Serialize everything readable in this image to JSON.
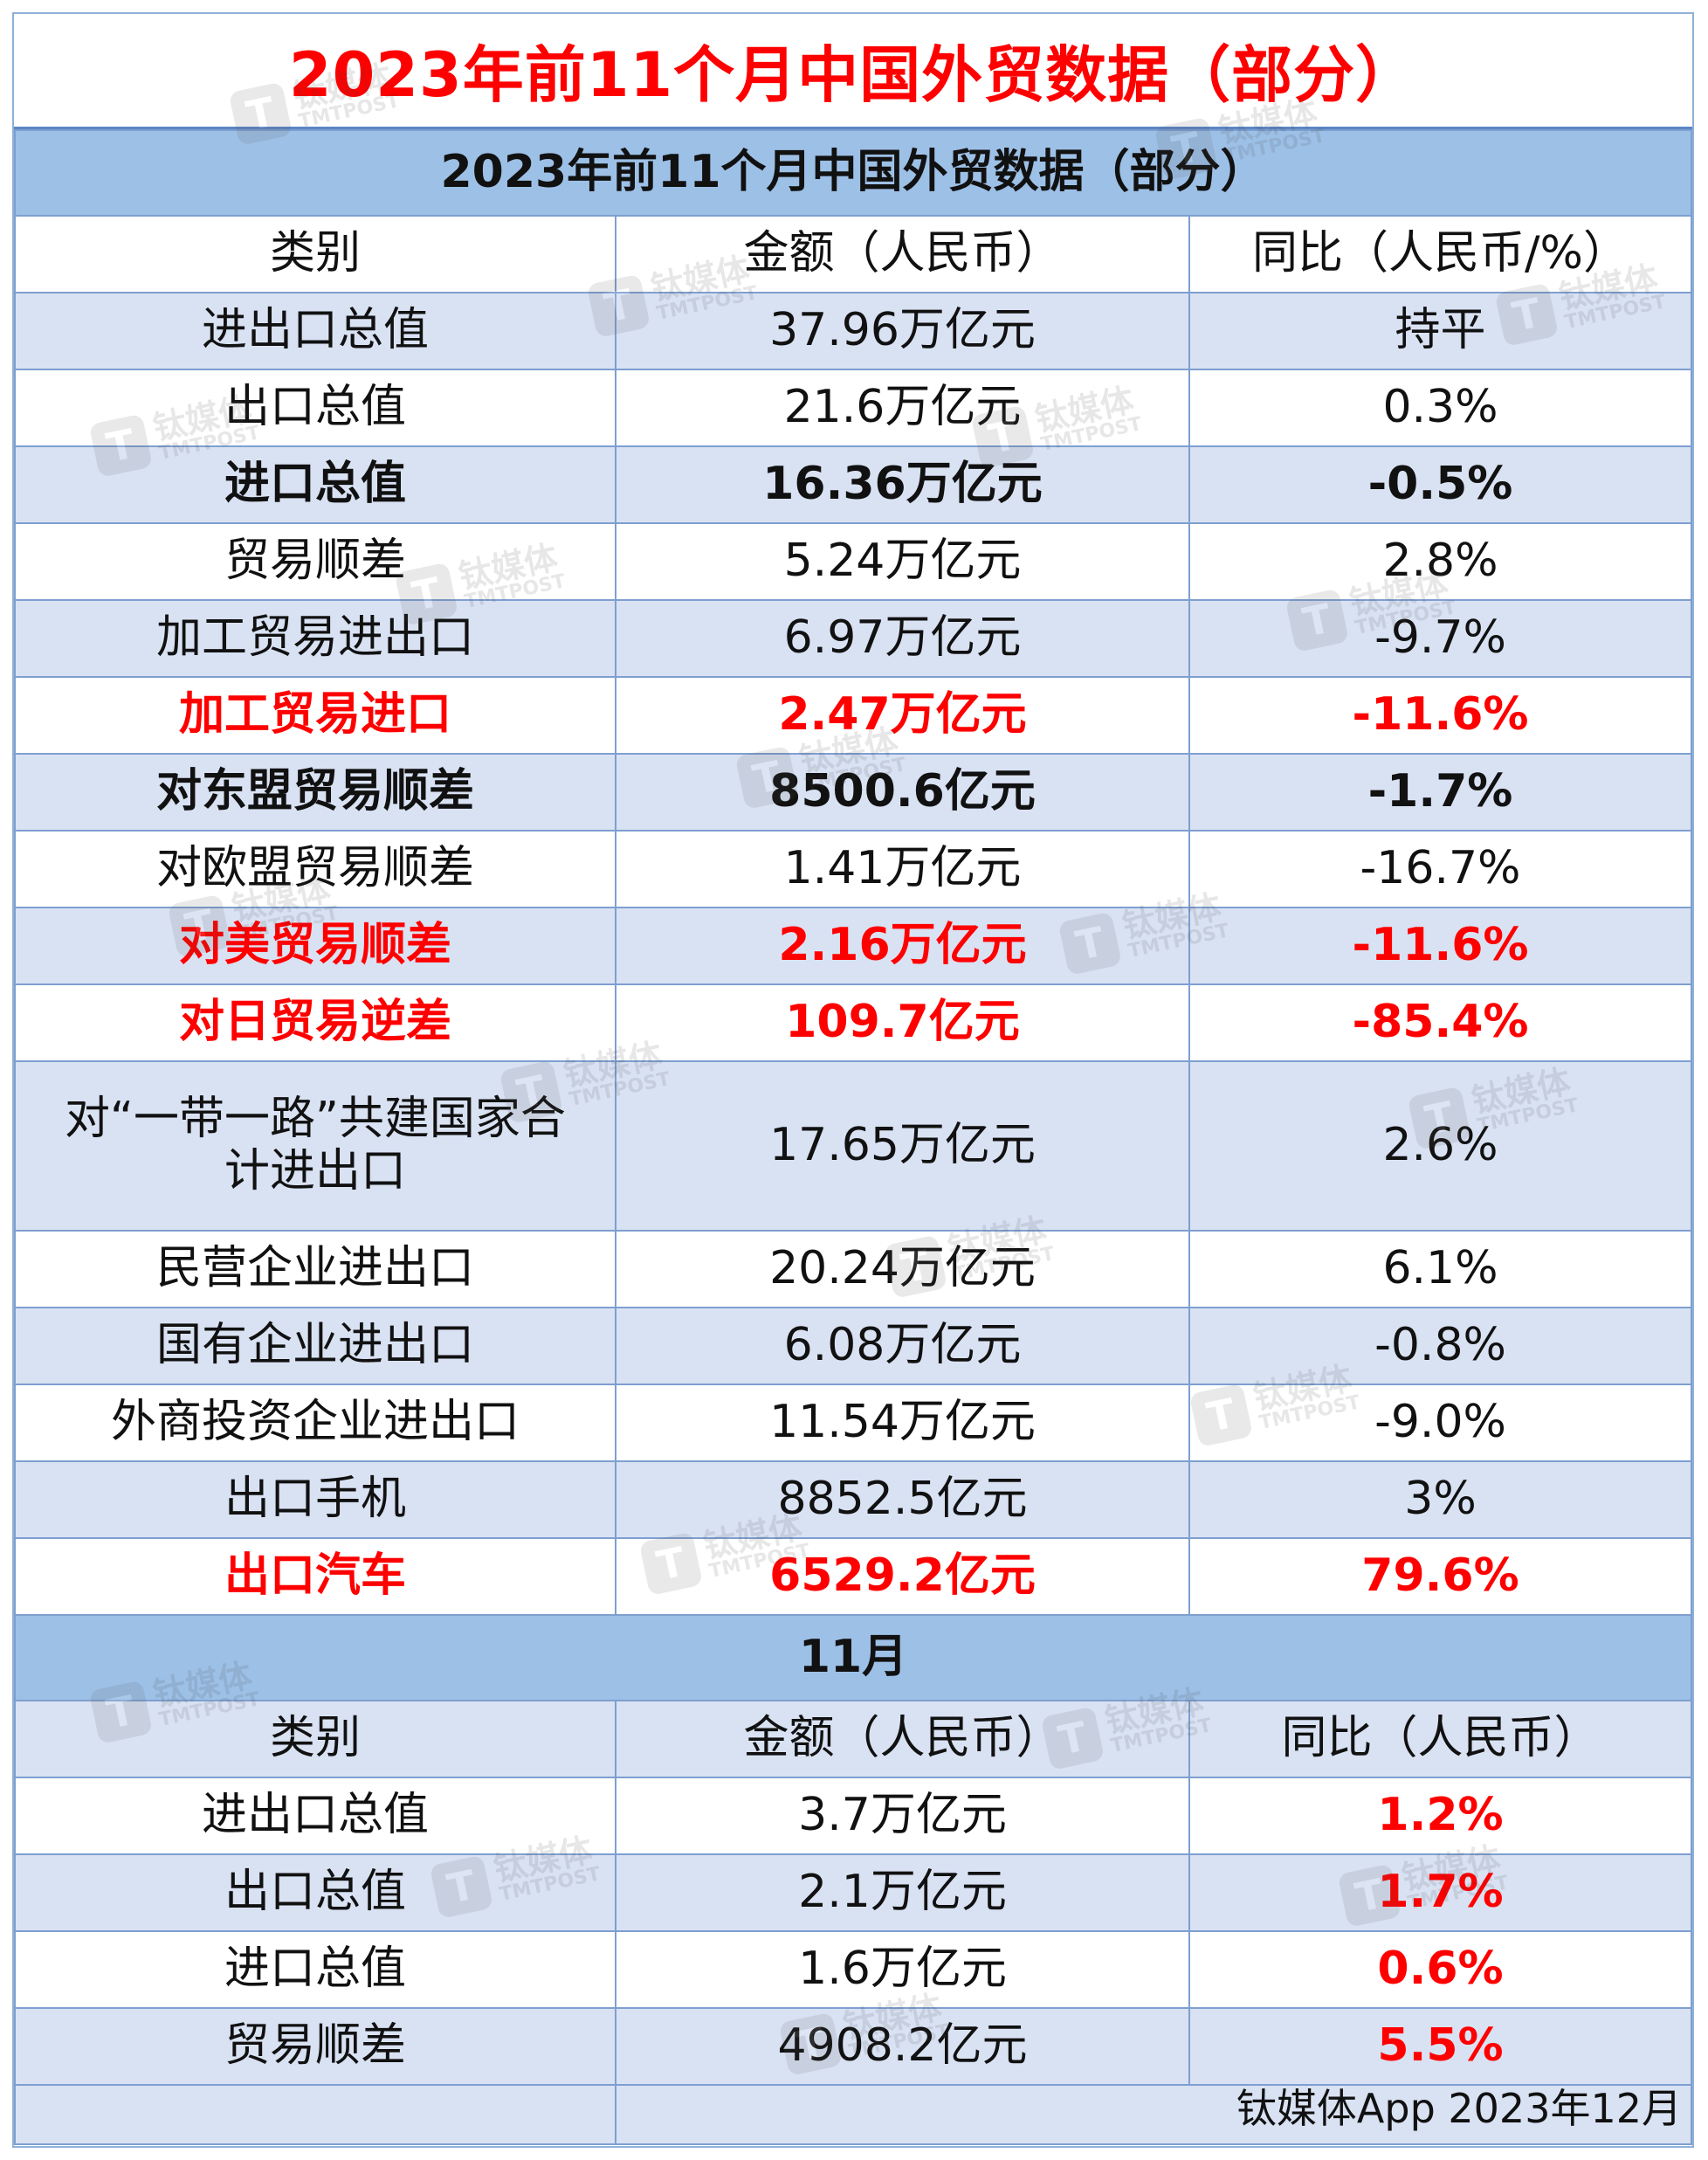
{
  "title": "2023年前11个月中国外贸数据（部分）",
  "section1": {
    "banner": "2023年前11个月中国外贸数据（部分）",
    "headers": [
      "类别",
      "金额（人民币）",
      "同比（人民币/%）"
    ],
    "rows": [
      {
        "category": "进出口总值",
        "amount": "37.96万亿元",
        "yoy": "持平"
      },
      {
        "category": "出口总值",
        "amount": "21.6万亿元",
        "yoy": "0.3%"
      },
      {
        "category": "进口总值",
        "amount": "16.36万亿元",
        "yoy": "-0.5%"
      },
      {
        "category": "贸易顺差",
        "amount": "5.24万亿元",
        "yoy": "2.8%"
      },
      {
        "category": "加工贸易进出口",
        "amount": "6.97万亿元",
        "yoy": "-9.7%"
      },
      {
        "category": "加工贸易进口",
        "amount": "2.47万亿元",
        "yoy": "-11.6%"
      },
      {
        "category": "对东盟贸易顺差",
        "amount": "8500.6亿元",
        "yoy": "-1.7%"
      },
      {
        "category": "对欧盟贸易顺差",
        "amount": "1.41万亿元",
        "yoy": "-16.7%"
      },
      {
        "category": "对美贸易顺差",
        "amount": "2.16万亿元",
        "yoy": "-11.6%"
      },
      {
        "category": "对日贸易逆差",
        "amount": "109.7亿元",
        "yoy": "-85.4%"
      },
      {
        "category": "对“一带一路”共建国家合计进出口",
        "amount": "17.65万亿元",
        "yoy": "2.6%"
      },
      {
        "category": "民营企业进出口",
        "amount": "20.24万亿元",
        "yoy": "6.1%"
      },
      {
        "category": "国有企业进出口",
        "amount": "6.08万亿元",
        "yoy": "-0.8%"
      },
      {
        "category": "外商投资企业进出口",
        "amount": "11.54万亿元",
        "yoy": "-9.0%"
      },
      {
        "category": "出口手机",
        "amount": "8852.5亿元",
        "yoy": "3%"
      },
      {
        "category": "出口汽车",
        "amount": "6529.2亿元",
        "yoy": "79.6%"
      }
    ]
  },
  "section2": {
    "banner": "11月",
    "headers": [
      "类别",
      "金额（人民币）",
      "同比（人民币）"
    ],
    "rows": [
      {
        "category": "进出口总值",
        "amount": "3.7万亿元",
        "yoy": "1.2%"
      },
      {
        "category": "出口总值",
        "amount": "2.1万亿元",
        "yoy": "1.7%"
      },
      {
        "category": "进口总值",
        "amount": "1.6万亿元",
        "yoy": "0.6%"
      },
      {
        "category": "贸易顺差",
        "amount": "4908.2亿元",
        "yoy": "5.5%"
      }
    ]
  },
  "footer": {
    "source": "钛媒体App 2023年12月"
  },
  "watermark": {
    "brand": "钛媒体",
    "sub": "TMTPOST",
    "logo_letter": "T"
  },
  "colors": {
    "title_red": "#ff0000",
    "banner_blue": "#9dc0e6",
    "row_alt": "#d9e2f3",
    "border": "#7e9fd0"
  }
}
